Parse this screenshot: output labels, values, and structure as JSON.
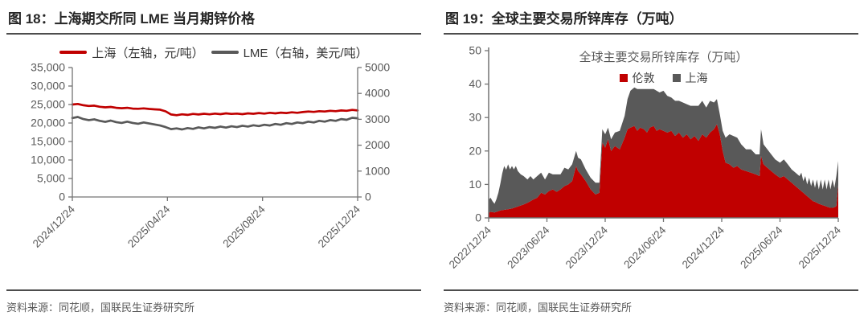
{
  "colors": {
    "red_series": "#c00000",
    "gray_series": "#595959",
    "axis": "#737373",
    "tick_label": "#595959",
    "title_text": "#262626"
  },
  "panels": {
    "left": {
      "title": "图 18：上海期交所同 LME 当月期锌价格",
      "source": "资料来源：同花顺，国联民生证券研究所",
      "legend": [
        {
          "label": "上海（左轴，元/吨）",
          "color": "#c00000"
        },
        {
          "label": "LME（右轴，美元/吨）",
          "color": "#595959"
        }
      ],
      "chart_data": {
        "type": "line",
        "title": "上海期交所同 LME 当月期锌价格",
        "x_unit": "weeks since 2024/12/24",
        "x_tick_labels": [
          "2024/12/24",
          "2025/04/24",
          "2025/08/24",
          "2025/12/24"
        ],
        "grid": false,
        "y_left": {
          "label": "元/吨",
          "min": 0,
          "max": 35000,
          "tick_labels": [
            "35,000",
            "30,000",
            "25,000",
            "20,000",
            "15,000",
            "10,000",
            "5,000",
            "0"
          ]
        },
        "y_right": {
          "label": "美元/吨",
          "min": 0,
          "max": 5000,
          "tick_labels": [
            "5000",
            "4000",
            "3000",
            "2000",
            "1000",
            "0"
          ]
        },
        "series": [
          {
            "name": "上海（左轴，元/吨）",
            "axis": "left",
            "color": "#c00000",
            "values": [
              25000,
              25150,
              24800,
              24600,
              24700,
              24400,
              24250,
              24350,
              24100,
              24000,
              24100,
              23900,
              23850,
              23950,
              23800,
              23700,
              23600,
              23150,
              22300,
              22100,
              22350,
              22200,
              22450,
              22300,
              22500,
              22350,
              22550,
              22400,
              22600,
              22450,
              22550,
              22400,
              22600,
              22500,
              22700,
              22550,
              22750,
              22600,
              22800,
              22700,
              22900,
              22750,
              22950,
              23100,
              23000,
              23200,
              23100,
              23300,
              23200,
              23400,
              23300,
              23550,
              23400
            ]
          },
          {
            "name": "LME（右轴，美元/吨）",
            "axis": "right",
            "color": "#595959",
            "values": [
              3050,
              3090,
              3010,
              2970,
              3000,
              2940,
              2900,
              2950,
              2890,
              2860,
              2910,
              2860,
              2830,
              2880,
              2840,
              2800,
              2760,
              2700,
              2620,
              2650,
              2610,
              2660,
              2630,
              2690,
              2650,
              2700,
              2670,
              2720,
              2680,
              2730,
              2700,
              2750,
              2720,
              2770,
              2740,
              2790,
              2760,
              2820,
              2790,
              2850,
              2820,
              2880,
              2850,
              2910,
              2880,
              2940,
              2910,
              2970,
              2940,
              3010,
              2980,
              3060,
              3040
            ]
          }
        ]
      }
    },
    "right": {
      "title": "图 19：全球主要交易所锌库存（万吨）",
      "inner_title": "全球主要交易所锌库存（万吨）",
      "source": "资料来源：同花顺，国联民生证券研究所",
      "legend": [
        {
          "label": "伦敦",
          "color": "#c00000"
        },
        {
          "label": "上海",
          "color": "#595959"
        }
      ],
      "chart_data": {
        "type": "stacked-area",
        "title": "全球主要交易所锌库存（万吨）",
        "unit": "万吨",
        "x_tick_labels": [
          "2022/12/24",
          "2023/06/24",
          "2023/12/24",
          "2024/06/24",
          "2024/12/24",
          "2025/06/24",
          "2025/12/24"
        ],
        "x_range_months": [
          0,
          36
        ],
        "grid": false,
        "y": {
          "min": 0,
          "max": 50,
          "tick_labels": [
            "50",
            "40",
            "30",
            "20",
            "10",
            "0"
          ]
        },
        "stack_order": [
          "伦敦",
          "上海"
        ],
        "points_columns": [
          "month_offset",
          "伦敦",
          "上海"
        ],
        "points": [
          [
            0,
            1.5,
            4.0
          ],
          [
            0.2,
            1.8,
            4.2
          ],
          [
            0.4,
            1.7,
            3.3
          ],
          [
            0.6,
            1.6,
            2.6
          ],
          [
            0.8,
            1.8,
            3.8
          ],
          [
            1.0,
            2.0,
            5.5
          ],
          [
            1.2,
            2.2,
            8.0
          ],
          [
            1.4,
            2.3,
            11.0
          ],
          [
            1.6,
            2.4,
            13.1
          ],
          [
            1.8,
            2.5,
            11.9
          ],
          [
            2.0,
            2.6,
            13.4
          ],
          [
            2.2,
            2.7,
            11.8
          ],
          [
            2.4,
            2.8,
            12.7
          ],
          [
            2.6,
            3.0,
            11.5
          ],
          [
            2.8,
            3.2,
            12.3
          ],
          [
            3.0,
            3.4,
            10.6
          ],
          [
            3.3,
            3.7,
            9.3
          ],
          [
            3.6,
            4.0,
            8.5
          ],
          [
            4.0,
            4.5,
            7.0
          ],
          [
            4.3,
            5.0,
            7.5
          ],
          [
            4.6,
            5.5,
            6.0
          ],
          [
            5.0,
            6.0,
            6.5
          ],
          [
            5.4,
            7.5,
            6.0
          ],
          [
            5.8,
            7.0,
            4.5
          ],
          [
            6.2,
            8.0,
            5.5
          ],
          [
            6.6,
            8.5,
            4.5
          ],
          [
            7.0,
            7.8,
            5.2
          ],
          [
            7.4,
            8.5,
            4.5
          ],
          [
            7.8,
            9.5,
            5.5
          ],
          [
            8.2,
            10.0,
            4.5
          ],
          [
            8.6,
            11.0,
            5.0
          ],
          [
            9.0,
            15.5,
            4.5
          ],
          [
            9.2,
            14.0,
            4.0
          ],
          [
            9.5,
            13.0,
            4.5
          ],
          [
            10.0,
            11.0,
            3.5
          ],
          [
            10.5,
            8.5,
            3.5
          ],
          [
            11.0,
            7.0,
            3.5
          ],
          [
            11.4,
            7.5,
            3.0
          ],
          [
            11.7,
            22.5,
            4.0
          ],
          [
            12.0,
            21.0,
            4.0
          ],
          [
            12.3,
            23.5,
            3.5
          ],
          [
            12.6,
            20.0,
            3.5
          ],
          [
            13.0,
            21.5,
            4.0
          ],
          [
            13.5,
            20.5,
            5.5
          ],
          [
            14.0,
            24.0,
            6.5
          ],
          [
            14.3,
            26.5,
            9.0
          ],
          [
            14.6,
            27.0,
            11.0
          ],
          [
            15.0,
            27.5,
            11.5
          ],
          [
            15.3,
            26.0,
            12.5
          ],
          [
            15.6,
            27.0,
            11.5
          ],
          [
            16.0,
            26.5,
            12.0
          ],
          [
            16.3,
            25.5,
            13.0
          ],
          [
            16.6,
            27.0,
            11.5
          ],
          [
            17.0,
            27.5,
            11.0
          ],
          [
            17.3,
            26.0,
            12.0
          ],
          [
            17.6,
            26.5,
            11.0
          ],
          [
            18.0,
            26.0,
            12.0
          ],
          [
            18.4,
            25.5,
            11.0
          ],
          [
            18.8,
            26.0,
            10.0
          ],
          [
            19.2,
            24.5,
            10.5
          ],
          [
            19.6,
            25.5,
            9.5
          ],
          [
            20.0,
            24.0,
            10.5
          ],
          [
            20.4,
            25.0,
            9.0
          ],
          [
            20.8,
            23.5,
            10.0
          ],
          [
            21.2,
            24.5,
            9.0
          ],
          [
            21.6,
            23.0,
            10.5
          ],
          [
            22.0,
            25.0,
            10.0
          ],
          [
            22.4,
            24.0,
            9.0
          ],
          [
            22.8,
            25.5,
            9.5
          ],
          [
            23.2,
            26.5,
            8.0
          ],
          [
            23.5,
            28.0,
            7.5
          ],
          [
            23.8,
            25.0,
            6.0
          ],
          [
            24.1,
            20.0,
            6.0
          ],
          [
            24.4,
            16.5,
            7.5
          ],
          [
            24.8,
            16.0,
            9.0
          ],
          [
            25.2,
            15.0,
            9.5
          ],
          [
            25.6,
            15.5,
            8.5
          ],
          [
            26.0,
            14.5,
            7.5
          ],
          [
            26.5,
            14.0,
            6.5
          ],
          [
            27.0,
            13.5,
            7.0
          ],
          [
            27.5,
            13.0,
            6.0
          ],
          [
            27.9,
            12.5,
            6.5
          ],
          [
            28.05,
            18.5,
            8.0
          ],
          [
            28.3,
            16.0,
            6.0
          ],
          [
            28.7,
            15.0,
            5.5
          ],
          [
            29.1,
            14.0,
            5.0
          ],
          [
            29.5,
            13.0,
            4.5
          ],
          [
            30.0,
            12.0,
            4.5
          ],
          [
            30.4,
            12.5,
            5.0
          ],
          [
            30.8,
            11.5,
            4.5
          ],
          [
            31.2,
            10.5,
            4.0
          ],
          [
            31.6,
            9.5,
            4.0
          ],
          [
            32.0,
            8.5,
            4.0
          ],
          [
            32.2,
            8.0,
            5.5
          ],
          [
            32.4,
            7.5,
            3.5
          ],
          [
            32.6,
            7.0,
            5.5
          ],
          [
            32.8,
            6.5,
            3.5
          ],
          [
            33.0,
            6.0,
            6.0
          ],
          [
            33.2,
            5.5,
            4.0
          ],
          [
            33.4,
            5.0,
            6.5
          ],
          [
            33.6,
            4.8,
            4.2
          ],
          [
            33.8,
            4.5,
            7.0
          ],
          [
            34.0,
            4.2,
            4.3
          ],
          [
            34.2,
            4.0,
            7.5
          ],
          [
            34.4,
            3.8,
            4.7
          ],
          [
            34.6,
            3.6,
            7.9
          ],
          [
            34.8,
            3.4,
            5.1
          ],
          [
            35.0,
            3.2,
            8.3
          ],
          [
            35.2,
            3.0,
            5.5
          ],
          [
            35.4,
            3.0,
            8.5
          ],
          [
            35.6,
            3.2,
            5.8
          ],
          [
            35.8,
            3.5,
            9.0
          ],
          [
            36.0,
            9.8,
            7.2
          ]
        ]
      }
    }
  }
}
